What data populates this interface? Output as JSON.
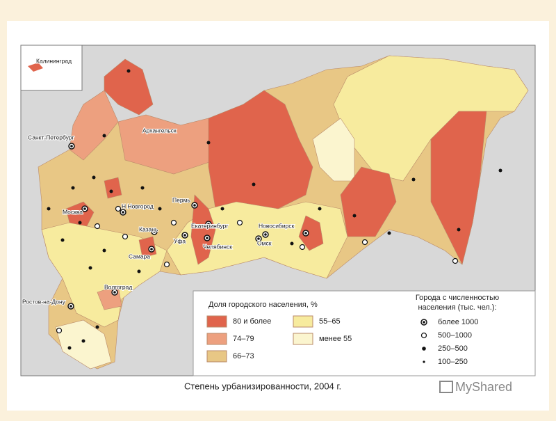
{
  "inset": {
    "label": "Калининград"
  },
  "cities": [
    "Санкт-Петербург",
    "Архангельск",
    "Москва",
    "Н Новгород",
    "Пермь",
    "Казань",
    "Екатеринбург",
    "Уфа",
    "Самара",
    "Челябинск",
    "Новосибирск",
    "Омск",
    "Ростов-на-Дону",
    "Волгоград"
  ],
  "legend": {
    "urban_title": "Доля городского населения, %",
    "urban_classes": [
      {
        "label": "80 и более",
        "color": "#e0644c"
      },
      {
        "label": "74–79",
        "color": "#eda07f"
      },
      {
        "label": "66–73",
        "color": "#e8c785"
      },
      {
        "label": "55–65",
        "color": "#f7eb9e"
      },
      {
        "label": "менее 55",
        "color": "#fbf5cf"
      }
    ],
    "cities_title": [
      "Города с численностью",
      "населения (тыс. чел.):"
    ],
    "city_sizes": [
      "более 1000",
      "500–1000",
      "250–500",
      "100–250"
    ]
  },
  "caption": "Степень урбанизированности, 2004 г.",
  "watermark": "MyShared"
}
